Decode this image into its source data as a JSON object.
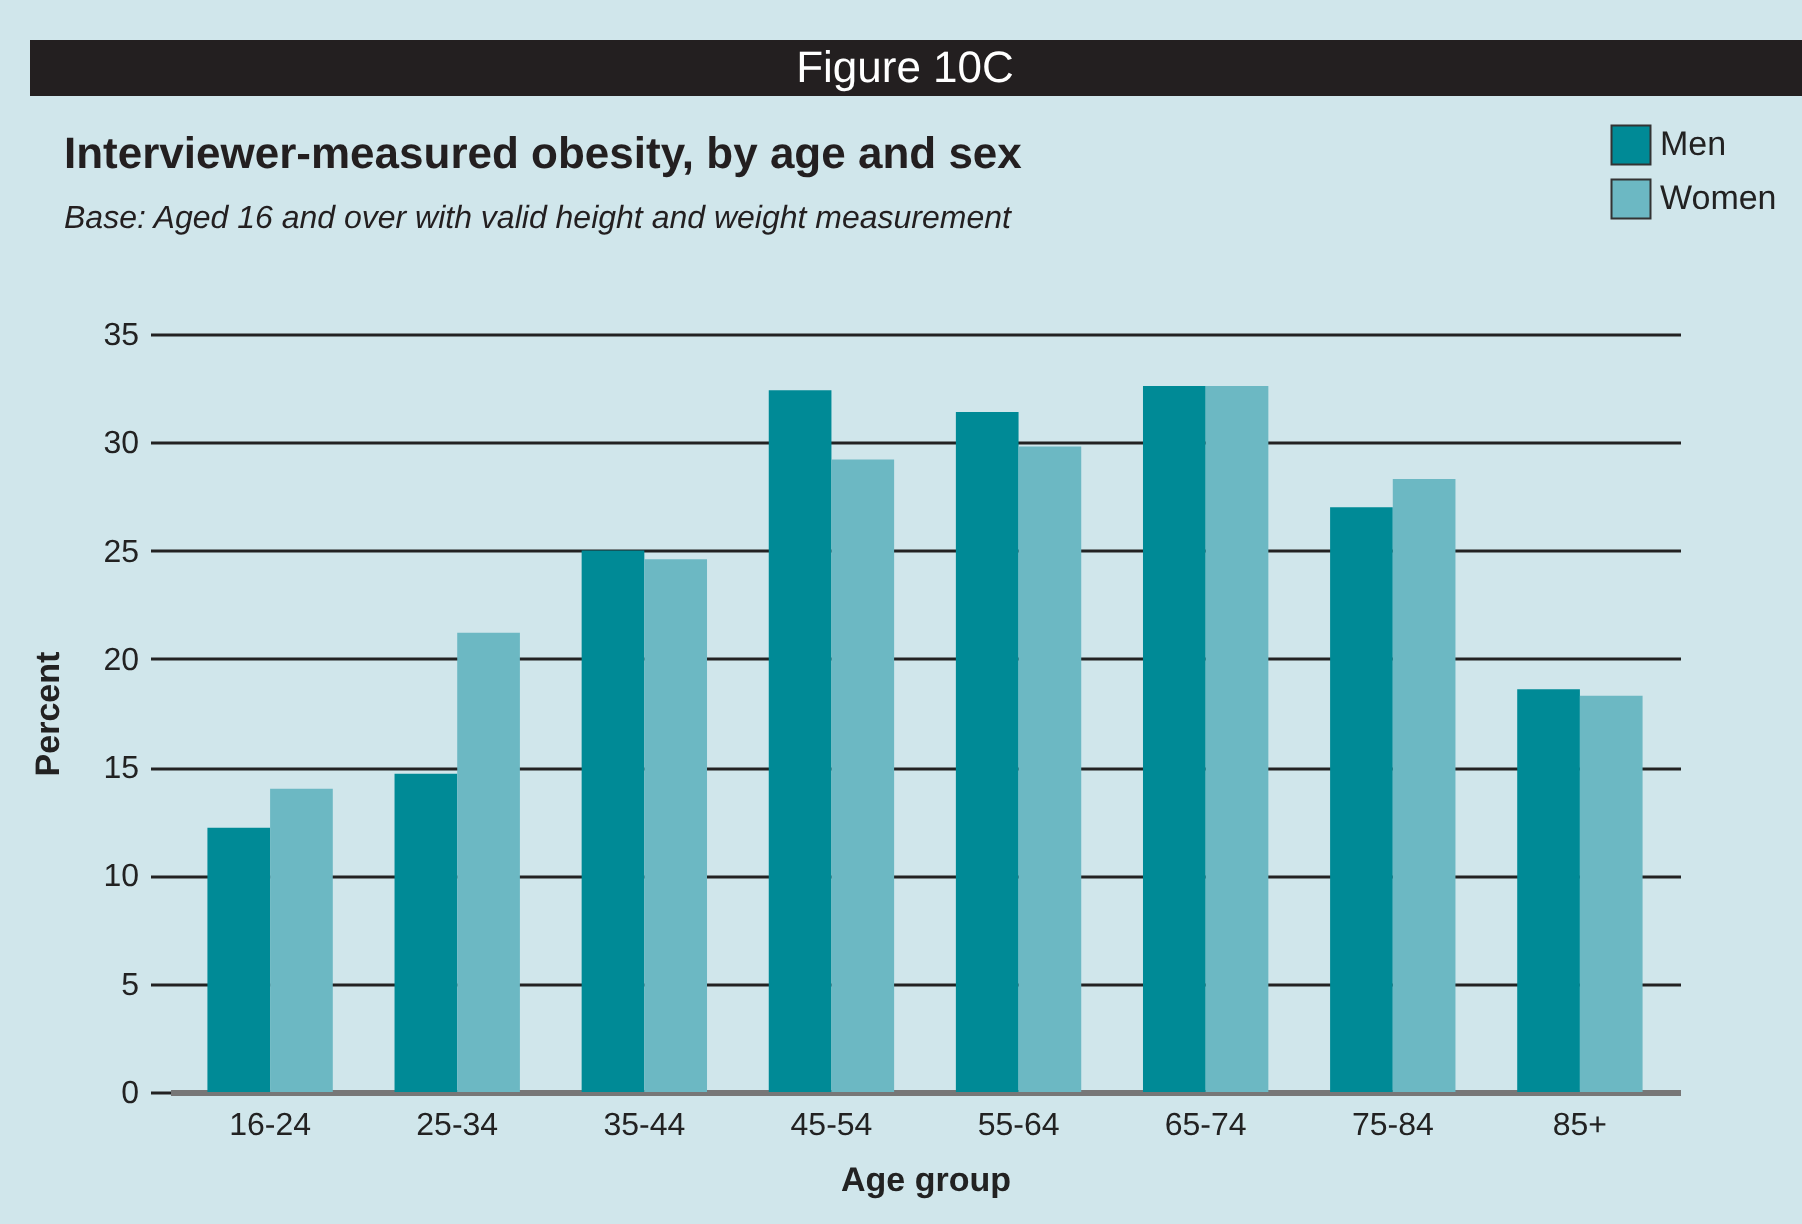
{
  "chart_data": {
    "type": "bar",
    "title": "Interviewer-measured obesity, by age and sex",
    "subtitle": "Base: Aged 16 and over with valid height and weight measurement",
    "annotations": [
      "Figure 10C"
    ],
    "xlabel": "Age group",
    "ylabel": "Percent",
    "categories": [
      "16-24",
      "25-34",
      "35-44",
      "45-54",
      "55-64",
      "65-74",
      "75-84",
      "85+"
    ],
    "series": [
      {
        "name": "Men",
        "color": "#008a96",
        "values": [
          12.2,
          14.7,
          25.0,
          32.4,
          31.4,
          32.6,
          27.0,
          18.6
        ]
      },
      {
        "name": "Women",
        "color": "#6cb8c3",
        "values": [
          14.0,
          21.2,
          24.6,
          29.2,
          29.8,
          32.6,
          28.3,
          18.3
        ]
      }
    ],
    "ylim": [
      0,
      35
    ],
    "yticks": [
      0,
      5,
      10,
      15,
      20,
      25,
      30,
      35
    ],
    "grid": "y",
    "legend": "top right"
  }
}
